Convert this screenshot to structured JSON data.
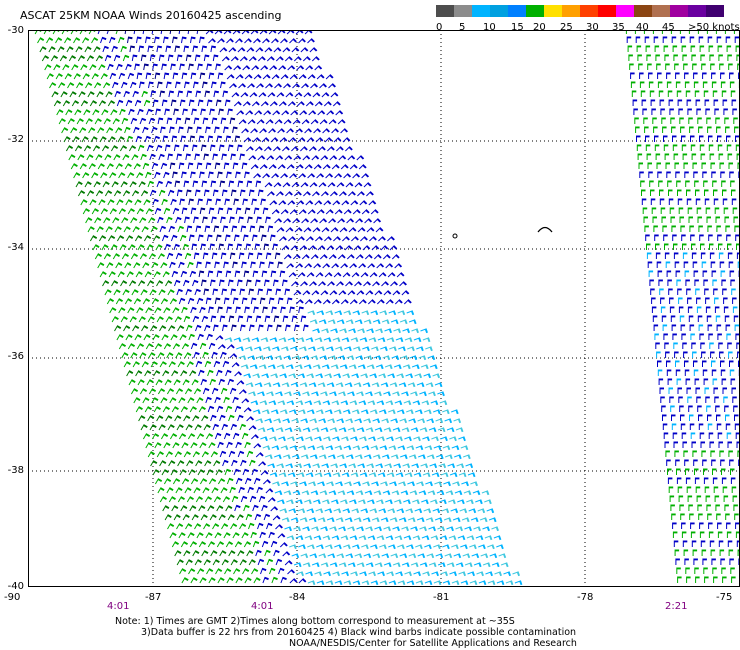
{
  "title": "ASCAT 25KM NOAA Winds 20160425 ascending",
  "wind_scale": {
    "labels": [
      "0",
      "5",
      "10",
      "15",
      "20",
      "25",
      "30",
      "35",
      "40",
      "45",
      ">50 knots"
    ],
    "colors": [
      "#4d4d4d",
      "#8c8c8c",
      "#00b4ff",
      "#00a0e0",
      "#0080ff",
      "#00b000",
      "#ffe000",
      "#ffa000",
      "#ff4000",
      "#ff0000",
      "#ff00ff",
      "#8b4513",
      "#b07050",
      "#a000a0",
      "#6a00a0",
      "#400070"
    ]
  },
  "lat_labels": [
    "-30",
    "-32",
    "-34",
    "-36",
    "-38",
    "-40"
  ],
  "lon_labels": [
    "-90",
    "-87",
    "-84",
    "-81",
    "-78",
    "-75"
  ],
  "pass_times": [
    "4:01",
    "4:01",
    "2:21"
  ],
  "notes": {
    "line1": "Note: 1) Times are GMT 2)Times along bottom correspond to measurement at ~35S",
    "line2": "3)Data buffer is 22 hrs from 20160425 4) Black wind barbs indicate possible contamination",
    "line3": "NOAA/NESDIS/Center for Satellite Applications and Research"
  },
  "swath_colors": {
    "green": "#00b000",
    "dark_green": "#007a00",
    "blue": "#0000c8",
    "dark_blue": "#00008b",
    "cyan": "#00b4ff",
    "light_cyan": "#40c8e0",
    "yellow": "#ffe000"
  }
}
